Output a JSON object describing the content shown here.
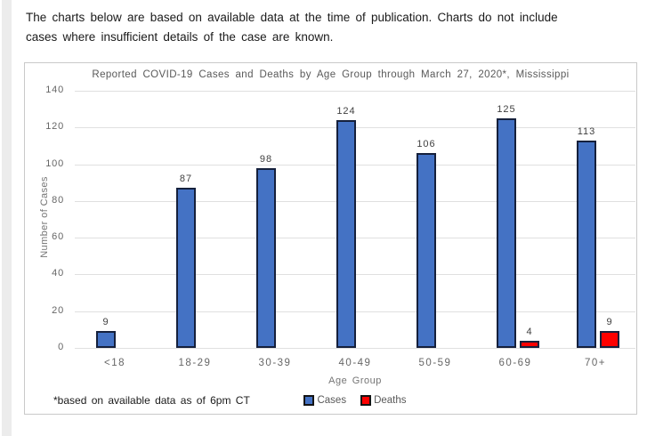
{
  "intro": {
    "line1": "The charts below are based on available data at the time of publication. Charts do not include",
    "line2": "cases where insufficient details of the case are known."
  },
  "chart_data": {
    "type": "bar",
    "title": "Reported COVID-19 Cases and Deaths by Age Group through March 27, 2020*, Mississippi",
    "categories": [
      "<18",
      "18-29",
      "30-39",
      "40-49",
      "50-59",
      "60-69",
      "70+"
    ],
    "series": [
      {
        "name": "Cases",
        "color": "#4472c4",
        "values": [
          9,
          87,
          98,
          124,
          106,
          125,
          113
        ]
      },
      {
        "name": "Deaths",
        "color": "#fe0000",
        "values": [
          0,
          0,
          0,
          0,
          0,
          4,
          9
        ]
      }
    ],
    "xlabel": "Age Group",
    "ylabel": "Number of Cases",
    "ylim": [
      0,
      140
    ],
    "yticks": [
      0,
      20,
      40,
      60,
      80,
      100,
      120,
      140
    ],
    "grid": true,
    "legend_position": "bottom",
    "footnote": "*based on available data as of 6pm CT",
    "hide_zero_bars": true,
    "colors": {
      "bar_border": "#15203c",
      "gridline": "#e0e0e0",
      "axis_text": "#666666",
      "title_text": "#595959"
    }
  }
}
